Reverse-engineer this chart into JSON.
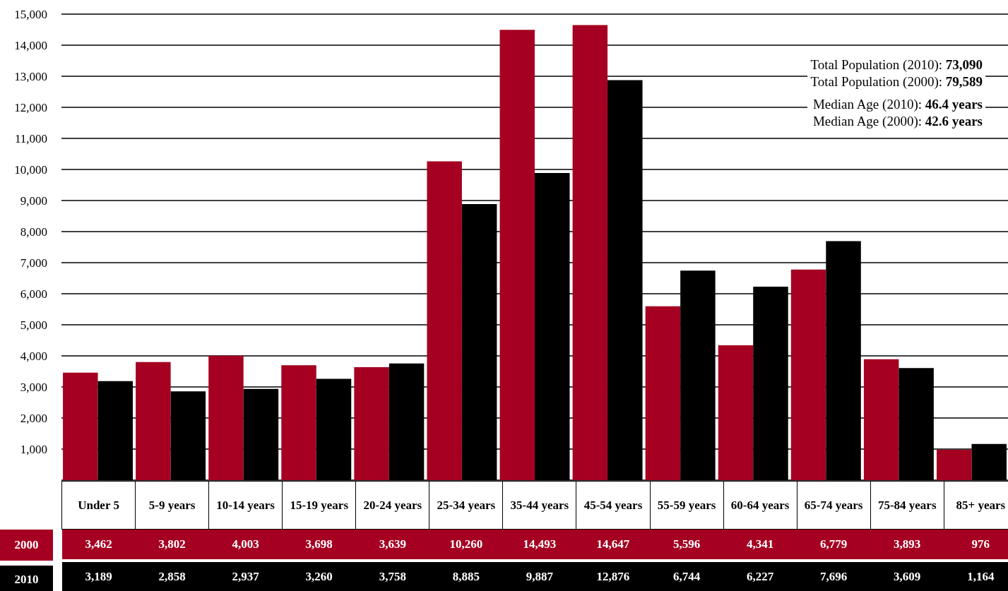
{
  "chart_data": {
    "type": "bar",
    "categories": [
      "Under 5",
      "5-9 years",
      "10-14 years",
      "15-19 years",
      "20-24 years",
      "25-34 years",
      "35-44 years",
      "45-54 years",
      "55-59 years",
      "60-64 years",
      "65-74 years",
      "75-84 years",
      "85+ years"
    ],
    "series": [
      {
        "name": "2000",
        "color": "#a50021",
        "values": [
          3462,
          3802,
          4003,
          3698,
          3639,
          10260,
          14493,
          14647,
          5596,
          4341,
          6779,
          3893,
          976
        ],
        "value_labels": [
          "3,462",
          "3,802",
          "4,003",
          "3,698",
          "3,639",
          "10,260",
          "14,493",
          "14,647",
          "5,596",
          "4,341",
          "6,779",
          "3,893",
          "976"
        ]
      },
      {
        "name": "2010",
        "color": "#000000",
        "values": [
          3189,
          2858,
          2937,
          3260,
          3758,
          8885,
          9887,
          12876,
          6744,
          6227,
          7696,
          3609,
          1164
        ],
        "value_labels": [
          "3,189",
          "2,858",
          "2,937",
          "3,260",
          "3,758",
          "8,885",
          "9,887",
          "12,876",
          "6,744",
          "6,227",
          "7,696",
          "3,609",
          "1,164"
        ]
      }
    ],
    "ylim": [
      0,
      15000
    ],
    "yticks": [
      {
        "value": 0,
        "label": null
      },
      {
        "value": 1000,
        "label": "1,000"
      },
      {
        "value": 2000,
        "label": "2,000"
      },
      {
        "value": 3000,
        "label": "3,000"
      },
      {
        "value": 4000,
        "label": "4,000"
      },
      {
        "value": 5000,
        "label": "5,000"
      },
      {
        "value": 6000,
        "label": "6,000"
      },
      {
        "value": 7000,
        "label": "7,000"
      },
      {
        "value": 8000,
        "label": "8,000"
      },
      {
        "value": 9000,
        "label": "9,000"
      },
      {
        "value": 10000,
        "label": "10,000"
      },
      {
        "value": 11000,
        "label": "11,000"
      },
      {
        "value": 12000,
        "label": "12,000"
      },
      {
        "value": 13000,
        "label": "13,000"
      },
      {
        "value": 14000,
        "label": "14,000"
      },
      {
        "value": 15000,
        "label": "15,000"
      }
    ],
    "grid": "y",
    "legend": "bottom",
    "annotations": [
      "Total Population (2010): 73,090",
      "Total Population (2000): 79,589",
      "Median Age (2010): 46.4 years",
      "Median Age (2000): 42.6 years"
    ]
  }
}
